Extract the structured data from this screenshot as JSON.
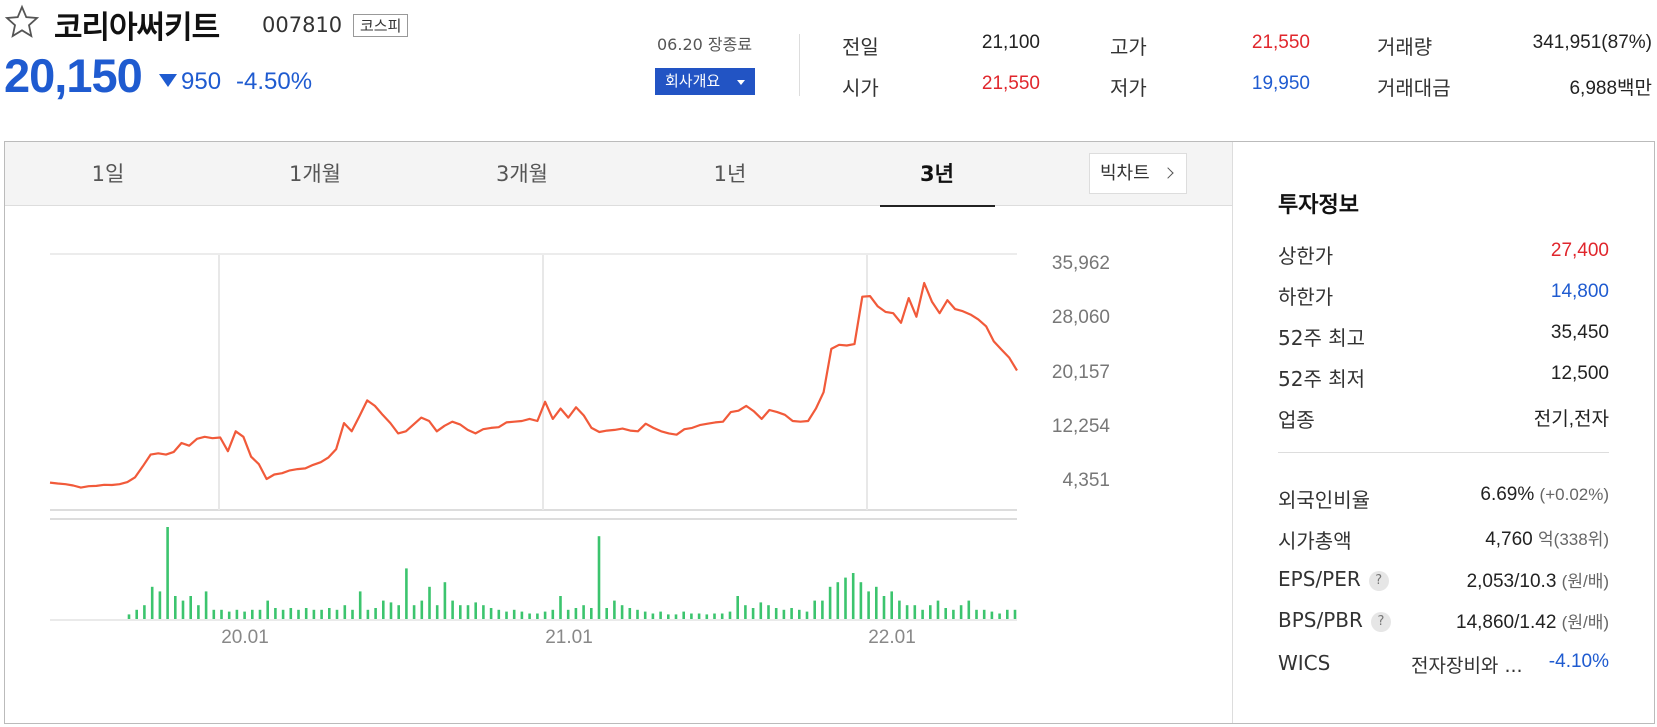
{
  "stock": {
    "name": "코리아써키트",
    "code": "007810",
    "market": "코스피",
    "price": "20,150",
    "change_amount": "950",
    "change_percent": "-4.50%",
    "direction": "down",
    "favorite_icon": "star-outline-icon"
  },
  "session": {
    "date_status": "06.20 장종료",
    "company_button_label": "회사개요"
  },
  "quote": {
    "prev_close_label": "전일",
    "prev_close": "21,100",
    "open_label": "시가",
    "open": "21,550",
    "high_label": "고가",
    "high": "21,550",
    "low_label": "저가",
    "low": "19,950",
    "volume_label": "거래량",
    "volume": "341,951(87%)",
    "trade_value_label": "거래대금",
    "trade_value": "6,988백만"
  },
  "tabs": [
    {
      "label": "1일"
    },
    {
      "label": "1개월"
    },
    {
      "label": "3개월"
    },
    {
      "label": "1년"
    },
    {
      "label": "3년",
      "active": true
    }
  ],
  "bigchart_label": "빅차트",
  "colors": {
    "up": "#e0262c",
    "down": "#1f5bd0",
    "line": "#f15a3a",
    "volume": "#3cc46e",
    "button": "#2254c4"
  },
  "chart_data": {
    "type": "line",
    "period": "3년",
    "y_tick_labels": [
      "35,962",
      "28,060",
      "20,157",
      "12,254",
      "4,351"
    ],
    "x_tick_labels": [
      "20.01",
      "21.01",
      "22.01"
    ],
    "ylim": [
      4351,
      35962
    ],
    "grid": true,
    "price_series": [
      3820,
      3700,
      3600,
      3400,
      3100,
      3300,
      3350,
      3500,
      3480,
      3600,
      3900,
      4600,
      6200,
      7900,
      8100,
      7900,
      8300,
      9600,
      9200,
      10200,
      10500,
      10300,
      10400,
      8400,
      11300,
      10500,
      7600,
      6500,
      4350,
      5000,
      5200,
      5600,
      5800,
      5900,
      6400,
      6800,
      7500,
      8700,
      12500,
      11300,
      13500,
      15800,
      15000,
      13700,
      12500,
      11000,
      11300,
      12300,
      13300,
      12800,
      11300,
      12100,
      12700,
      12300,
      11500,
      11000,
      11600,
      11800,
      11900,
      12600,
      12700,
      12800,
      13100,
      12800,
      15600,
      13100,
      14600,
      13300,
      14800,
      13600,
      11800,
      11200,
      11400,
      11500,
      11700,
      11400,
      11300,
      12400,
      11800,
      11300,
      11000,
      10800,
      11600,
      11800,
      12200,
      12400,
      12600,
      12700,
      14100,
      14300,
      15000,
      14200,
      13100,
      14400,
      14100,
      13700,
      12800,
      12700,
      12800,
      14600,
      17000,
      23300,
      23900,
      23800,
      24000,
      30900,
      31000,
      29500,
      28700,
      28500,
      27100,
      30700,
      28000,
      32900,
      30200,
      28500,
      30400,
      29100,
      28800,
      28300,
      27600,
      26600,
      24400,
      23200,
      22000,
      20150
    ],
    "volume_series": [
      0,
      0,
      0,
      0,
      0,
      0,
      0,
      0,
      0,
      0,
      0.05,
      0.1,
      0.15,
      0.35,
      0.3,
      1.0,
      0.25,
      0.2,
      0.25,
      0.15,
      0.3,
      0.1,
      0.1,
      0.08,
      0.1,
      0.08,
      0.1,
      0.1,
      0.2,
      0.12,
      0.1,
      0.12,
      0.1,
      0.12,
      0.1,
      0.1,
      0.12,
      0.1,
      0.15,
      0.1,
      0.3,
      0.1,
      0.12,
      0.2,
      0.18,
      0.15,
      0.55,
      0.15,
      0.2,
      0.35,
      0.15,
      0.4,
      0.2,
      0.15,
      0.15,
      0.18,
      0.15,
      0.12,
      0.1,
      0.08,
      0.1,
      0.08,
      0.06,
      0.06,
      0.08,
      0.1,
      0.25,
      0.1,
      0.12,
      0.15,
      0.12,
      0.9,
      0.12,
      0.2,
      0.15,
      0.12,
      0.1,
      0.08,
      0.06,
      0.08,
      0.05,
      0.05,
      0.08,
      0.06,
      0.06,
      0.05,
      0.06,
      0.06,
      0.08,
      0.25,
      0.15,
      0.12,
      0.18,
      0.15,
      0.12,
      0.1,
      0.12,
      0.1,
      0.08,
      0.2,
      0.2,
      0.35,
      0.4,
      0.45,
      0.5,
      0.4,
      0.3,
      0.35,
      0.25,
      0.3,
      0.2,
      0.15,
      0.15,
      0.1,
      0.15,
      0.2,
      0.12,
      0.1,
      0.15,
      0.2,
      0.1,
      0.1,
      0.08,
      0.06,
      0.1,
      0.1
    ]
  },
  "invest_info": {
    "title": "투자정보",
    "rows": [
      {
        "label": "상한가",
        "value": "27,400",
        "color": "up"
      },
      {
        "label": "하한가",
        "value": "14,800",
        "color": "down"
      },
      {
        "label": "52주 최고",
        "value": "35,450"
      },
      {
        "label": "52주 최저",
        "value": "12,500"
      },
      {
        "label": "업종",
        "value": "전기,전자"
      }
    ],
    "foreign_ratio": {
      "label": "외국인비율",
      "value": "6.69%",
      "sub": "(+0.02%)"
    },
    "market_cap": {
      "label": "시가총액",
      "value": "4,760",
      "unit": "억",
      "sub": "(338위)"
    },
    "eps_per": {
      "label": "EPS/PER",
      "value": "2,053/10.3",
      "sub": "(원/배)",
      "help": "?"
    },
    "bps_pbr": {
      "label": "BPS/PBR",
      "value": "14,860/1.42",
      "sub": "(원/배)",
      "help": "?"
    },
    "wics": {
      "label": "WICS",
      "sector": "전자장비와 ...",
      "change": "-4.10%"
    }
  }
}
